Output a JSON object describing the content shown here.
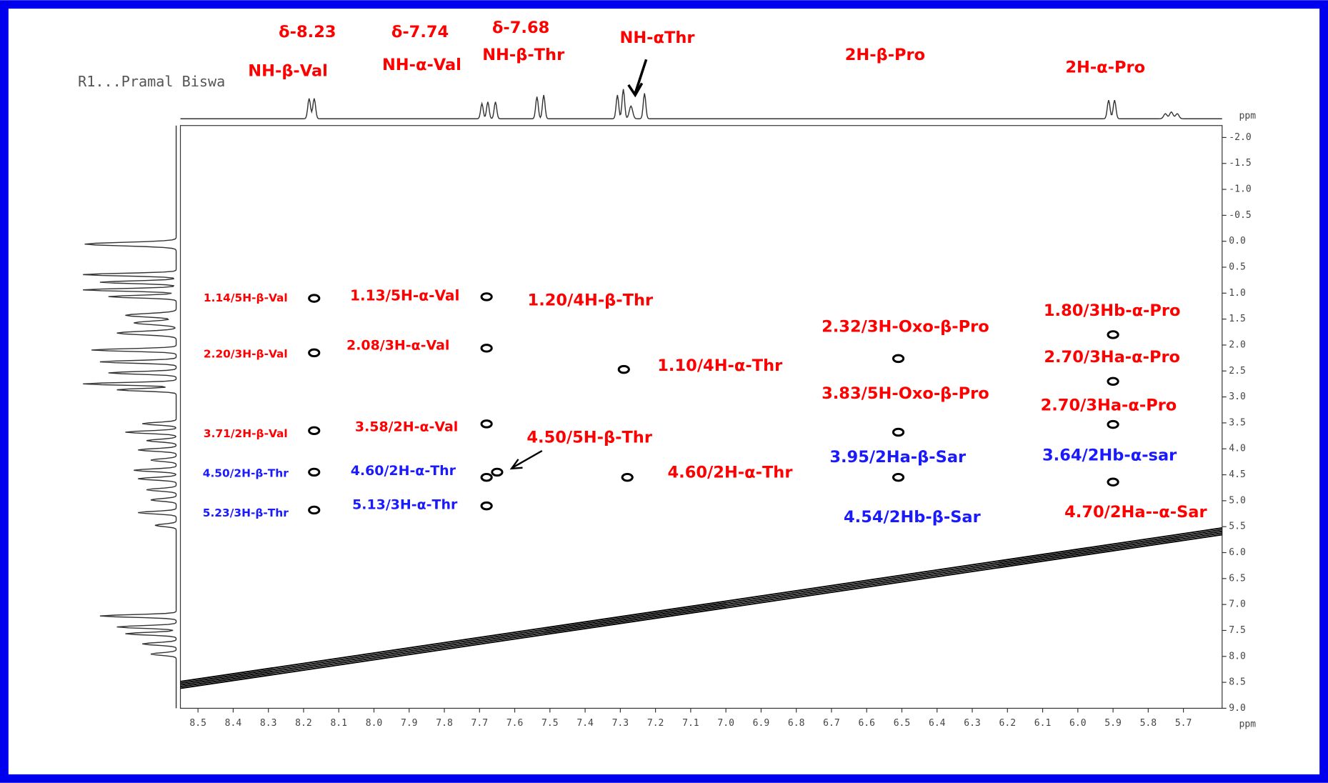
{
  "chart_data": {
    "type": "scatter",
    "title": "R1...Pramal Biswa",
    "x_label": "ppm",
    "y_label": "ppm",
    "xlim": [
      8.55,
      5.59
    ],
    "ylim": [
      -2.23,
      9.0
    ],
    "xticks": [
      8.5,
      8.4,
      8.3,
      8.2,
      8.1,
      {
        "value": 8.0,
        "label": "8.0"
      },
      7.9,
      7.8,
      7.7,
      7.6,
      7.5,
      7.4,
      7.3,
      7.2,
      7.1,
      {
        "value": 7.0,
        "label": "7.0"
      },
      6.9,
      6.8,
      6.7,
      6.6,
      6.5,
      6.4,
      6.3,
      6.2,
      6.1,
      {
        "value": 6.0,
        "label": "6.0"
      },
      5.9,
      5.8,
      5.7
    ],
    "yticks": [
      {
        "value": -2.0,
        "label": "-2.0"
      },
      -1.5,
      {
        "value": -1.0,
        "label": "-1.0"
      },
      -0.5,
      {
        "value": 0.0,
        "label": "0.0"
      },
      0.5,
      {
        "value": 1.0,
        "label": "1.0"
      },
      1.5,
      {
        "value": 2.0,
        "label": "2.0"
      },
      2.5,
      {
        "value": 3.0,
        "label": "3.0"
      },
      3.5,
      {
        "value": 4.0,
        "label": "4.0"
      },
      4.5,
      {
        "value": 5.0,
        "label": "5.0"
      },
      5.5,
      {
        "value": 6.0,
        "label": "6.0"
      },
      6.5,
      {
        "value": 7.0,
        "label": "7.0"
      },
      7.5,
      {
        "value": 8.0,
        "label": "8.0"
      },
      8.5,
      {
        "value": 9.0,
        "label": "9.0"
      }
    ],
    "color": "#000000",
    "x": [
      8.17,
      8.17,
      8.17,
      8.17,
      8.17,
      7.68,
      7.68,
      7.68,
      7.68,
      7.65,
      7.68,
      7.29,
      7.28,
      6.51,
      6.51,
      6.51,
      5.9,
      5.9,
      5.9,
      5.9
    ],
    "y": [
      1.1,
      2.15,
      3.65,
      4.45,
      5.18,
      1.07,
      2.06,
      3.52,
      4.55,
      4.45,
      5.1,
      2.47,
      4.55,
      2.26,
      3.68,
      4.55,
      1.8,
      2.7,
      3.53,
      4.64
    ],
    "annotations": [
      {
        "text": "δ-8.23",
        "color": "#ff0000"
      },
      {
        "text": "NH-β-Val",
        "color": "#ff0000"
      },
      {
        "text": "δ-7.74",
        "color": "#ff0000"
      },
      {
        "text": "NH-α-Val",
        "color": "#ff0000"
      },
      {
        "text": "δ-7.68",
        "color": "#ff0000"
      },
      {
        "text": "NH-β-Thr",
        "color": "#ff0000"
      },
      {
        "text": "NH-αThr",
        "color": "#ff0000"
      },
      {
        "text": "2H-β-Pro",
        "color": "#ff0000"
      },
      {
        "text": "2H-α-Pro",
        "color": "#ff0000"
      },
      {
        "text": "1.14/5H-β-Val",
        "color": "#ff0000"
      },
      {
        "text": "1.13/5H-α-Val",
        "color": "#ff0000"
      },
      {
        "text": "1.20/4H-β-Thr",
        "color": "#ff0000"
      },
      {
        "text": "2.20/3H-β-Val",
        "color": "#ff0000"
      },
      {
        "text": "2.08/3H-α-Val",
        "color": "#ff0000"
      },
      {
        "text": "1.10/4H-α-Thr",
        "color": "#ff0000"
      },
      {
        "text": "2.32/3H-Oxo-β-Pro",
        "color": "#ff0000"
      },
      {
        "text": "1.80/3Hb-α-Pro",
        "color": "#ff0000"
      },
      {
        "text": "2.70/3Ha-α-Pro",
        "color": "#ff0000"
      },
      {
        "text": "3.83/5H-Oxo-β-Pro",
        "color": "#ff0000"
      },
      {
        "text": "2.70/3Ha-α-Pro",
        "color": "#ff0000"
      },
      {
        "text": "3.71/2H-β-Val",
        "color": "#ff0000"
      },
      {
        "text": "3.58/2H-α-Val",
        "color": "#ff0000"
      },
      {
        "text": "4.50/5H-β-Thr",
        "color": "#ff0000"
      },
      {
        "text": "4.60/2H-α-Thr",
        "color": "#ff0000"
      },
      {
        "text": "4.70/2Ha--α-Sar",
        "color": "#ff0000"
      },
      {
        "text": "4.50/2H-β-Thr",
        "color": "#1a1aff"
      },
      {
        "text": "4.60/2H-α-Thr",
        "color": "#1a1aff"
      },
      {
        "text": "5.23/3H-β-Thr",
        "color": "#1a1aff"
      },
      {
        "text": "5.13/3H-α-Thr",
        "color": "#1a1aff"
      },
      {
        "text": "3.95/2Ha-β-Sar",
        "color": "#1a1aff"
      },
      {
        "text": "3.64/2Hb-α-sar",
        "color": "#1a1aff"
      },
      {
        "text": "4.54/2Hb-β-Sar",
        "color": "#1a1aff"
      }
    ]
  }
}
